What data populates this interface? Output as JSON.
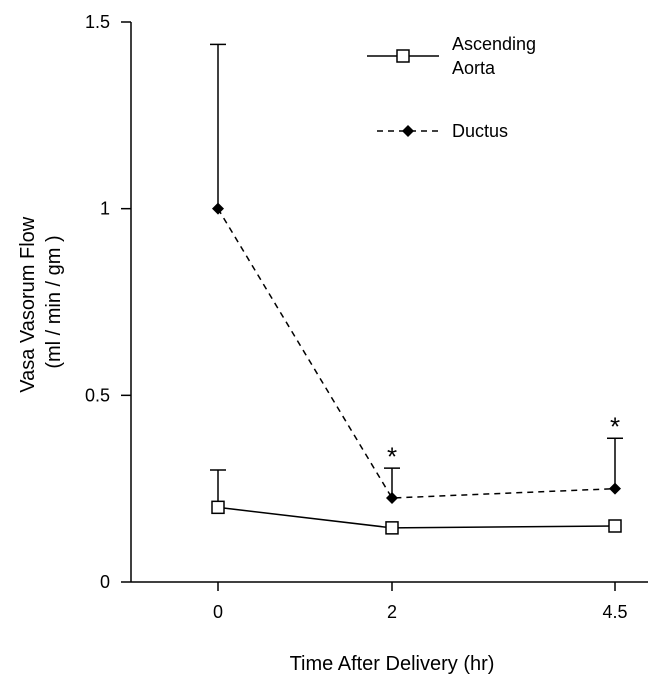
{
  "chart_data": {
    "type": "line",
    "title": "",
    "xlabel": "Time After Delivery (hr)",
    "ylabel": [
      "Vasa Vasorum Flow",
      "(ml / min / gm )"
    ],
    "categories": [
      "0",
      "2",
      "4.5"
    ],
    "ylim": [
      0,
      1.5
    ],
    "yticks": [
      "0",
      "0.5",
      "1",
      "1.5"
    ],
    "series": [
      {
        "name": [
          "Ascending",
          "Aorta"
        ],
        "marker": "open-square",
        "line_style": "solid",
        "values": [
          0.2,
          0.145,
          0.15
        ],
        "error_upper": [
          0.3,
          0.145,
          0.15
        ]
      },
      {
        "name": [
          "Ductus"
        ],
        "marker": "filled-diamond",
        "line_style": "dashed",
        "values": [
          1.0,
          0.225,
          0.25
        ],
        "error_upper": [
          1.44,
          0.305,
          0.385
        ]
      }
    ],
    "annotations": [
      {
        "text": "*",
        "category_index": 1,
        "y": 0.355
      },
      {
        "text": "*",
        "category_index": 2,
        "y": 0.435
      }
    ],
    "legend_position": "top-right",
    "grid": false
  }
}
